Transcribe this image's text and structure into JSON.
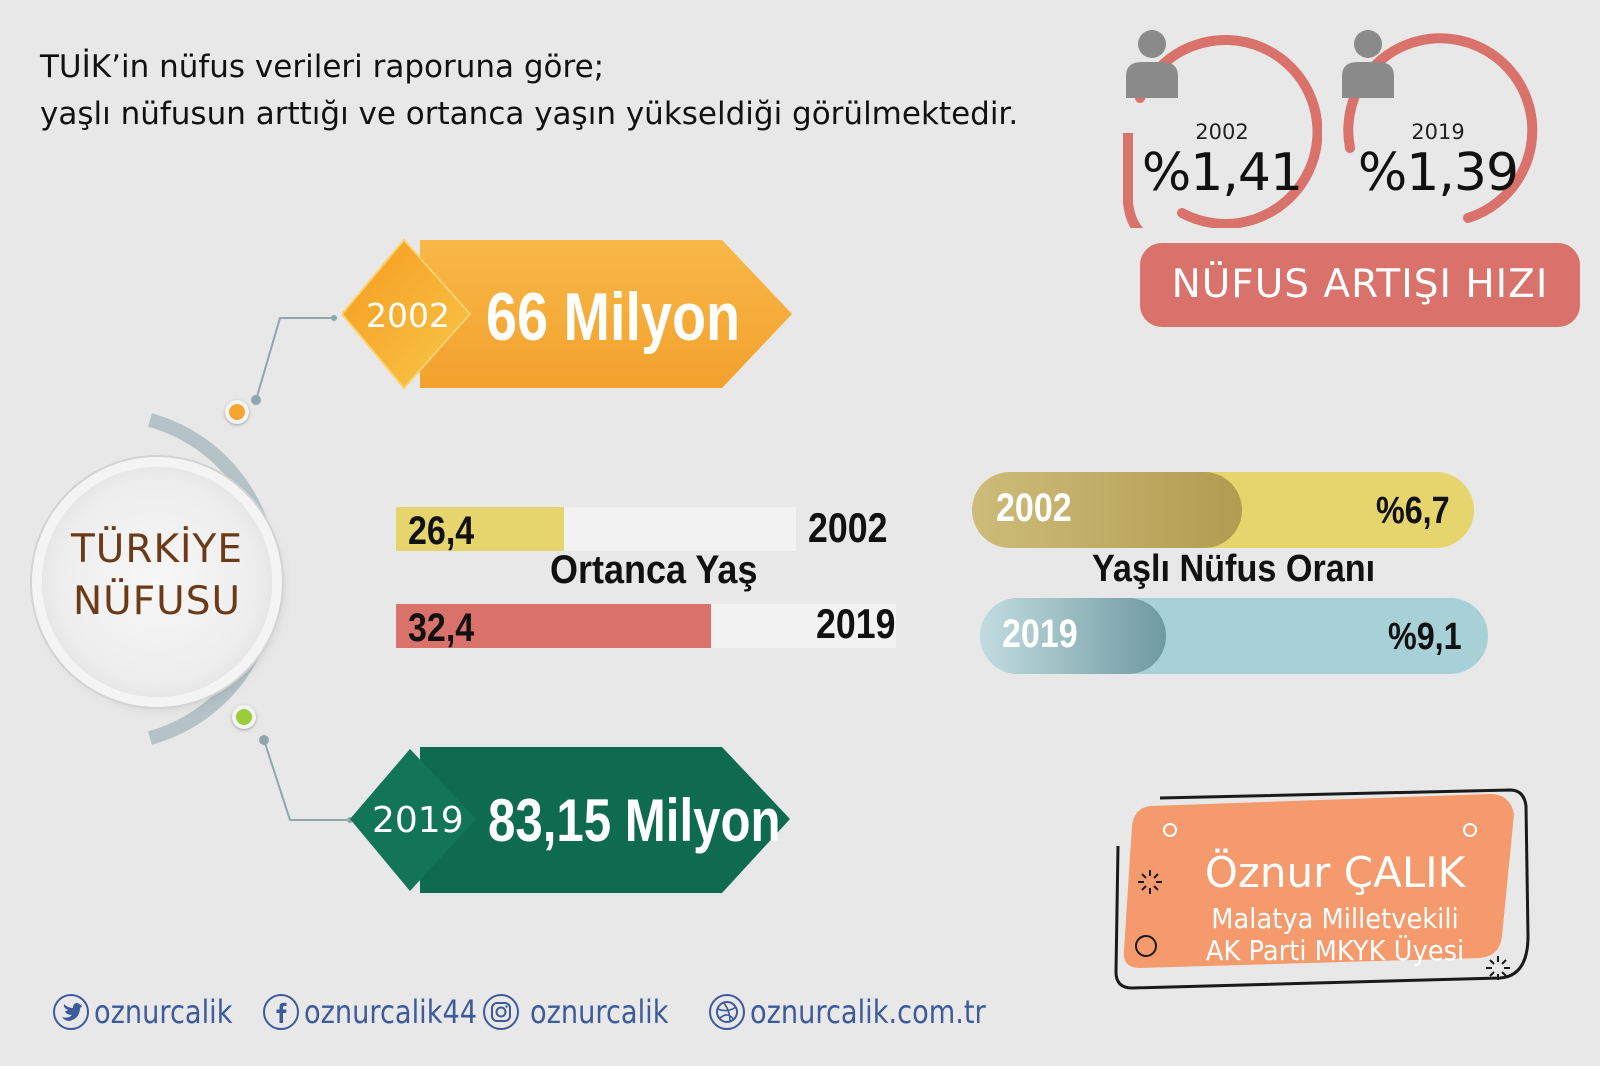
{
  "intro": {
    "line1": "TUİK’in nüfus verileri raporuna göre;",
    "line2": "yaşlı nüfusun arttığı ve ortanca yaşın yükseldiği görülmektedir."
  },
  "growth": {
    "title": "NÜFUS ARTIŞI HIZI",
    "items": [
      {
        "year": "2002",
        "value": "%1,41"
      },
      {
        "year": "2019",
        "value": "%1,39"
      }
    ],
    "color": "#d9726a"
  },
  "center": {
    "line1": "TÜRKİYE",
    "line2": "NÜFUSU"
  },
  "population": [
    {
      "year": "2002",
      "value": "66 Milyon",
      "color": "#f6a531"
    },
    {
      "year": "2019",
      "value": "83,15 Milyon",
      "color": "#0f6b4e"
    }
  ],
  "median_age": {
    "title": "Ortanca Yaş",
    "items": [
      {
        "year": "2002",
        "value": "26,4",
        "color": "#e6d56d",
        "fill": 0.42
      },
      {
        "year": "2019",
        "value": "32,4",
        "color": "#d9726a",
        "fill": 0.63
      }
    ]
  },
  "elderly": {
    "title": "Yaşlı Nüfus Oranı",
    "items": [
      {
        "year": "2002",
        "value": "%6,7",
        "color": "#e6d56d"
      },
      {
        "year": "2019",
        "value": "%9,1",
        "color": "#a8d0d7"
      }
    ]
  },
  "signature": {
    "name": "Öznur ÇALIK",
    "line1": "Malatya Milletvekili",
    "line2": "AK Parti MKYK Üyesi",
    "color": "#f49a6c"
  },
  "social": [
    {
      "icon": "twitter-icon",
      "text": "oznurcalik"
    },
    {
      "icon": "facebook-icon",
      "text": "oznurcalik44"
    },
    {
      "icon": "instagram-icon",
      "text": "oznurcalik"
    },
    {
      "icon": "web-icon",
      "text": "oznurcalik.com.tr"
    }
  ]
}
